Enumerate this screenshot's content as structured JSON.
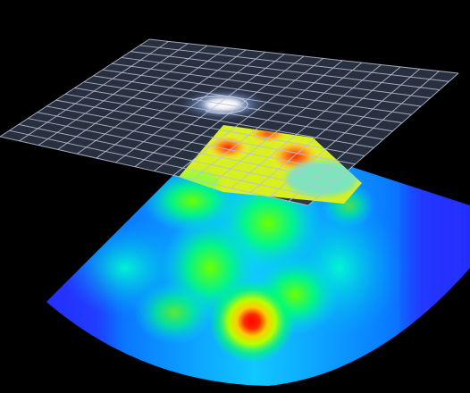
{
  "scene": {
    "background": "#000000",
    "grid_plane": {
      "fill": "#2a3142",
      "line_color": "#b9c2d3",
      "cells": 16
    },
    "galaxy": {
      "core_color": "#ffffff",
      "arm_color": "#a9c7ff"
    },
    "heatmap": {
      "colormap": [
        "#1a1cff",
        "#0a7dff",
        "#00d8ff",
        "#00ff88",
        "#7cff00",
        "#ffff00",
        "#ff8800",
        "#ff0000"
      ],
      "peak_level": 1.0,
      "hot_spot_label": ""
    },
    "overlay_patch": {
      "colormap": [
        "#ffff40",
        "#ff9a20",
        "#ff2000"
      ]
    }
  }
}
